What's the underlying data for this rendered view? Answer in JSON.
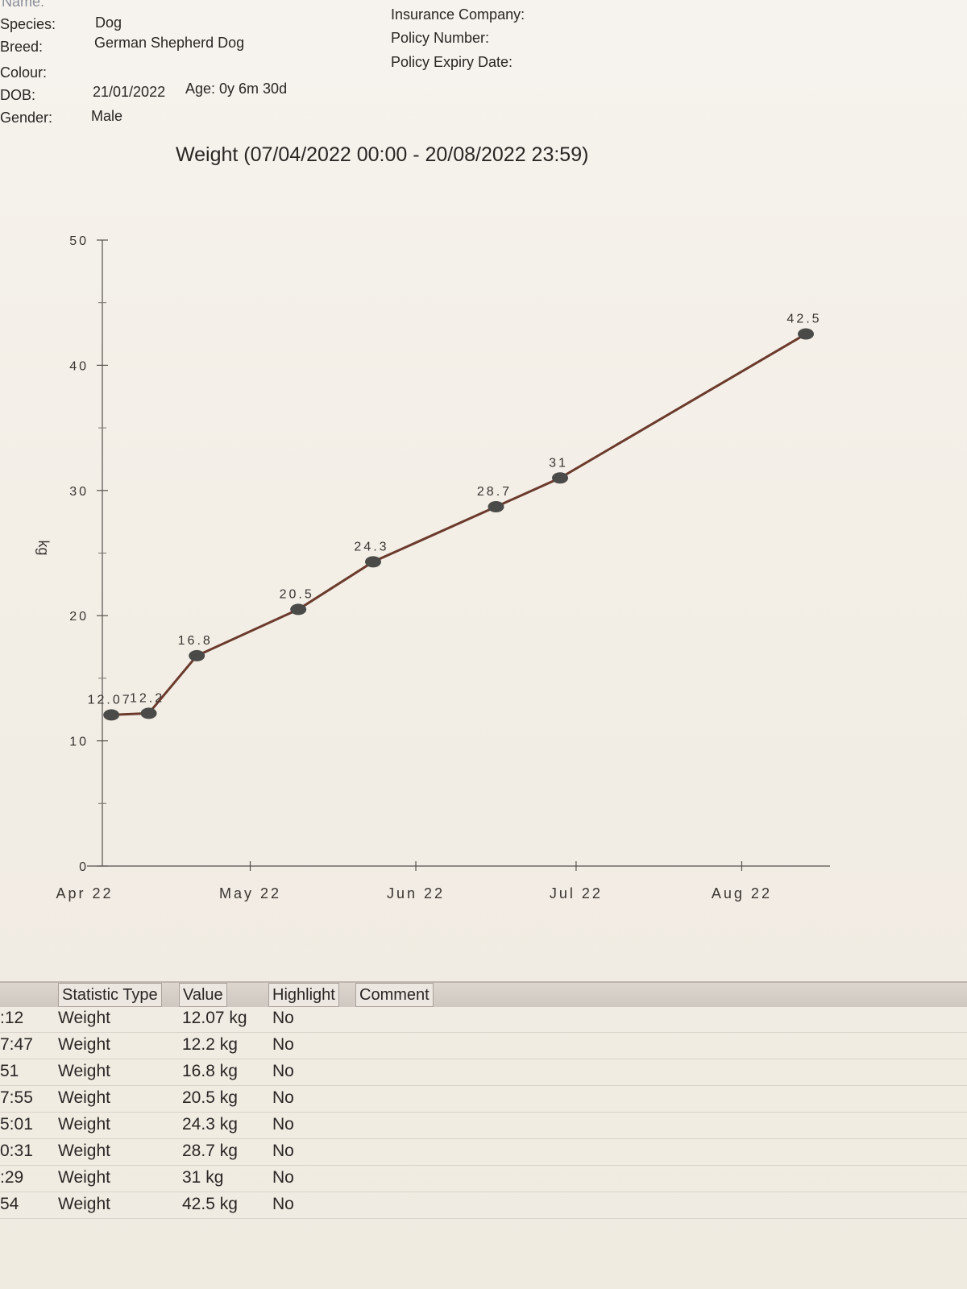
{
  "header": {
    "name_label": "Name:",
    "species_label": "Species:",
    "species_value": "Dog",
    "breed_label": "Breed:",
    "breed_value": "German Shepherd Dog",
    "colour_label": "Colour:",
    "dob_label": "DOB:",
    "dob_value": "21/01/2022",
    "age_text": "Age: 0y 6m 30d",
    "gender_label": "Gender:",
    "gender_value": "Male",
    "insurance_label": "Insurance Company:",
    "policy_number_label": "Policy Number:",
    "policy_expiry_label": "Policy Expiry Date:"
  },
  "chart_data": {
    "type": "line",
    "title": "Weight (07/04/2022 00:00 - 20/08/2022 23:59)",
    "ylabel": "kg",
    "xlabel": "",
    "ylim": [
      0,
      50
    ],
    "yticks": [
      0,
      10,
      20,
      30,
      40,
      50
    ],
    "xtick_labels": [
      "Apr 22",
      "May 22",
      "Jun 22",
      "Jul 22",
      "Aug 22"
    ],
    "xlim": [
      "2022-04-07",
      "2022-08-20"
    ],
    "xtick_dates": [
      "2022-04-07",
      "2022-05-08",
      "2022-06-08",
      "2022-07-08",
      "2022-08-08"
    ],
    "series": [
      {
        "points": [
          {
            "x": "2022-04-12",
            "y": 12.07,
            "label": "12.07"
          },
          {
            "x": "2022-04-19",
            "y": 12.2,
            "label": "12.2"
          },
          {
            "x": "2022-04-28",
            "y": 16.8,
            "label": "16.8"
          },
          {
            "x": "2022-05-17",
            "y": 20.5,
            "label": "20.5"
          },
          {
            "x": "2022-05-31",
            "y": 24.3,
            "label": "24.3"
          },
          {
            "x": "2022-06-23",
            "y": 28.7,
            "label": "28.7"
          },
          {
            "x": "2022-07-05",
            "y": 31,
            "label": "31"
          },
          {
            "x": "2022-08-20",
            "y": 42.5,
            "label": "42.5"
          }
        ]
      }
    ],
    "grid": false,
    "line_color": "#6b3a2c",
    "marker_color": "#4a4a48"
  },
  "table": {
    "headers": [
      "Statistic Type",
      "Value",
      "Highlight",
      "Comment"
    ],
    "rows": [
      {
        "time": ":12",
        "type": "Weight",
        "value": "12.07 kg",
        "highlight": "No"
      },
      {
        "time": "7:47",
        "type": "Weight",
        "value": "12.2 kg",
        "highlight": "No"
      },
      {
        "time": "51",
        "type": "Weight",
        "value": "16.8 kg",
        "highlight": "No"
      },
      {
        "time": "7:55",
        "type": "Weight",
        "value": "20.5 kg",
        "highlight": "No"
      },
      {
        "time": "5:01",
        "type": "Weight",
        "value": "24.3 kg",
        "highlight": "No"
      },
      {
        "time": "0:31",
        "type": "Weight",
        "value": "28.7 kg",
        "highlight": "No"
      },
      {
        "time": ":29",
        "type": "Weight",
        "value": "31 kg",
        "highlight": "No"
      },
      {
        "time": "54",
        "type": "Weight",
        "value": "42.5 kg",
        "highlight": "No"
      }
    ]
  }
}
